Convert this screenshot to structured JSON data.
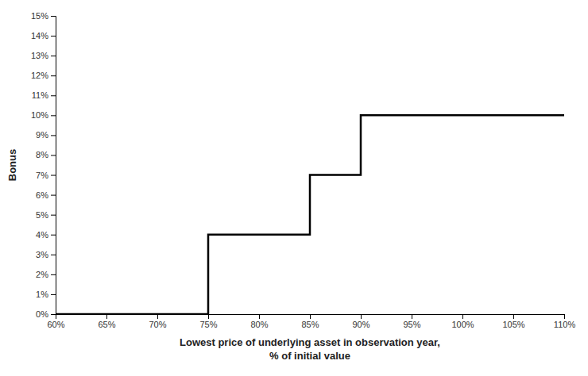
{
  "chart_data": {
    "type": "line",
    "x": [
      0.6,
      0.75,
      0.75,
      0.85,
      0.85,
      0.9,
      0.9,
      1.1
    ],
    "values": [
      0.0,
      0.0,
      0.04,
      0.04,
      0.07,
      0.07,
      0.1,
      0.1
    ],
    "color": "#000000",
    "x_label": [
      "Lowest price of underlying asset in observation year,",
      "% of initial value"
    ],
    "y_label": "Bonus",
    "xlim": [
      0.6,
      1.1
    ],
    "ylim": [
      0.0,
      0.15
    ],
    "xticks": [
      {
        "value": 0.6,
        "label": "60%"
      },
      {
        "value": 0.65,
        "label": "65%"
      },
      {
        "value": 0.7,
        "label": "70%"
      },
      {
        "value": 0.75,
        "label": "75%"
      },
      {
        "value": 0.8,
        "label": "80%"
      },
      {
        "value": 0.85,
        "label": "85%"
      },
      {
        "value": 0.9,
        "label": "90%"
      },
      {
        "value": 0.95,
        "label": "95%"
      },
      {
        "value": 1.0,
        "label": "100%"
      },
      {
        "value": 1.05,
        "label": "105%"
      },
      {
        "value": 1.1,
        "label": "110%"
      }
    ],
    "yticks": [
      {
        "value": 0.0,
        "label": "0%"
      },
      {
        "value": 0.01,
        "label": "1%"
      },
      {
        "value": 0.02,
        "label": "2%"
      },
      {
        "value": 0.03,
        "label": "3%"
      },
      {
        "value": 0.04,
        "label": "4%"
      },
      {
        "value": 0.05,
        "label": "5%"
      },
      {
        "value": 0.06,
        "label": "6%"
      },
      {
        "value": 0.07,
        "label": "7%"
      },
      {
        "value": 0.08,
        "label": "8%"
      },
      {
        "value": 0.09,
        "label": "9%"
      },
      {
        "value": 0.1,
        "label": "10%"
      },
      {
        "value": 0.11,
        "label": "11%"
      },
      {
        "value": 0.12,
        "label": "12%"
      },
      {
        "value": 0.13,
        "label": "13%"
      },
      {
        "value": 0.14,
        "label": "14%"
      },
      {
        "value": 0.15,
        "label": "15%"
      }
    ],
    "grid": false
  }
}
